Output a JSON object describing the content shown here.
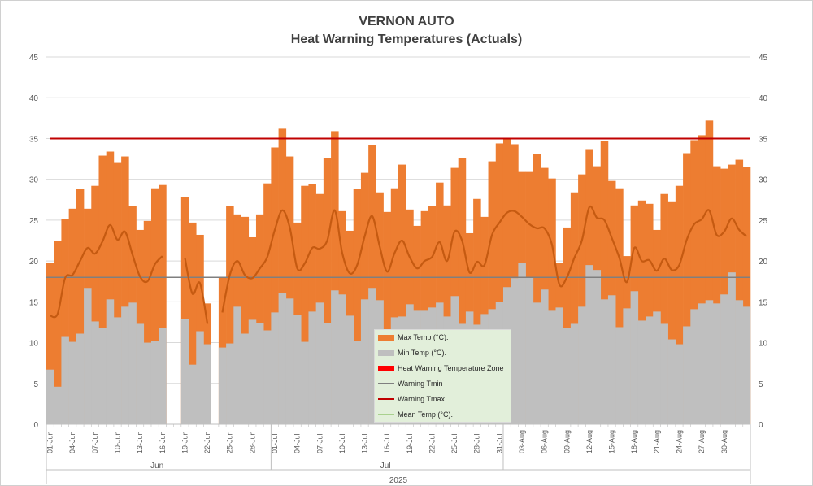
{
  "chart_data": {
    "type": "bar",
    "title": "VERNON AUTO",
    "subtitle": "Heat Warning Temperatures  (Actuals)",
    "ylim": [
      0,
      45
    ],
    "y_ticks": [
      "0",
      "5",
      "10",
      "15",
      "20",
      "25",
      "30",
      "35",
      "40",
      "45"
    ],
    "x_start_date": "2025-06-01",
    "x_tick_labels": [
      "01-Jun",
      "04-Jun",
      "07-Jun",
      "10-Jun",
      "13-Jun",
      "16-Jun",
      "19-Jun",
      "22-Jun",
      "25-Jun",
      "28-Jun",
      "01-Jul",
      "04-Jul",
      "07-Jul",
      "10-Jul",
      "13-Jul",
      "16-Jul",
      "19-Jul",
      "22-Jul",
      "25-Jul",
      "28-Jul",
      "31-Jul",
      "03-Aug",
      "06-Aug",
      "09-Aug",
      "12-Aug",
      "15-Aug",
      "18-Aug",
      "21-Aug",
      "24-Aug",
      "27-Aug",
      "30-Aug"
    ],
    "month_labels": [
      "Jun",
      "Jul",
      ""
    ],
    "year_label": "2025",
    "series": [
      {
        "name": "Max Temp (°C).",
        "color": "#ed7d31",
        "values": [
          19.8,
          22.4,
          25.1,
          26.4,
          28.8,
          26.4,
          29.2,
          32.9,
          33.4,
          32.1,
          32.8,
          26.7,
          23.8,
          24.9,
          28.9,
          29.3,
          null,
          null,
          27.8,
          24.7,
          23.2,
          14.8,
          null,
          18.0,
          26.7,
          25.7,
          25.4,
          22.9,
          25.7,
          29.5,
          33.9,
          36.2,
          32.8,
          24.7,
          29.2,
          29.4,
          28.2,
          32.6,
          35.9,
          26.1,
          23.7,
          28.8,
          30.8,
          34.2,
          28.4,
          26.0,
          28.9,
          31.8,
          26.3,
          24.3,
          26.1,
          26.7,
          29.6,
          26.8,
          31.4,
          32.6,
          23.4,
          27.6,
          25.4,
          32.2,
          34.4,
          35.0,
          34.3,
          30.9,
          30.9,
          33.1,
          31.4,
          30.1,
          19.8,
          24.1,
          28.4,
          30.6,
          33.7,
          31.6,
          34.7,
          29.8,
          28.9,
          20.6,
          26.8,
          27.4,
          27.0,
          23.8,
          28.2,
          27.3,
          29.2,
          33.2,
          34.8,
          35.4,
          37.2,
          31.6,
          31.3,
          31.8,
          32.4,
          31.5
        ]
      },
      {
        "name": "Min Temp (°C).",
        "color": "#bfbfbf",
        "values": [
          6.7,
          4.6,
          10.7,
          10.1,
          11.1,
          16.7,
          12.6,
          11.8,
          15.3,
          13.1,
          14.4,
          14.9,
          12.3,
          10.0,
          10.2,
          11.8,
          null,
          null,
          12.9,
          7.3,
          11.4,
          9.8,
          null,
          9.4,
          9.9,
          14.4,
          11.1,
          12.8,
          12.4,
          11.5,
          13.7,
          16.1,
          15.4,
          13.4,
          10.1,
          13.8,
          14.9,
          12.4,
          16.4,
          15.9,
          13.3,
          10.2,
          15.3,
          16.7,
          15.2,
          11.4,
          13.1,
          13.2,
          14.7,
          13.9,
          13.9,
          14.3,
          14.9,
          13.2,
          15.7,
          12.3,
          13.8,
          12.2,
          13.5,
          14.1,
          15.0,
          16.8,
          17.9,
          19.8,
          18.0,
          14.9,
          16.5,
          13.9,
          14.3,
          11.8,
          12.3,
          14.4,
          19.5,
          18.9,
          15.3,
          15.8,
          11.9,
          14.2,
          16.3,
          12.7,
          13.2,
          13.8,
          12.3,
          10.4,
          9.8,
          12.0,
          14.1,
          14.8,
          15.2,
          14.8,
          15.9,
          18.6,
          15.2,
          14.4
        ]
      },
      {
        "name": "Heat Warning Temperature Zone",
        "color": "#ff0000",
        "values": []
      },
      {
        "name": "Warning Tmin",
        "color": "#7f7f7f",
        "values": [
          18,
          18
        ]
      },
      {
        "name": "Warning Tmax",
        "color": "#c00000",
        "values": [
          35,
          35
        ]
      },
      {
        "name": "Mean Temp (°C).",
        "color": "#a9d18e",
        "values": [
          13.3,
          13.5,
          17.9,
          18.3,
          20.0,
          21.6,
          20.9,
          22.4,
          24.4,
          22.6,
          23.6,
          20.8,
          18.1,
          17.5,
          19.6,
          20.6,
          null,
          null,
          20.4,
          16.0,
          17.3,
          12.3,
          null,
          13.7,
          18.3,
          20.0,
          18.3,
          17.9,
          19.1,
          20.5,
          23.8,
          26.2,
          24.1,
          19.1,
          19.7,
          21.6,
          21.5,
          22.5,
          26.2,
          21.0,
          18.5,
          19.5,
          23.0,
          25.5,
          21.8,
          18.7,
          21.0,
          22.5,
          20.5,
          19.1,
          20.0,
          20.5,
          22.3,
          20.0,
          23.6,
          22.5,
          18.6,
          19.9,
          19.5,
          23.2,
          24.7,
          25.9,
          26.1,
          25.4,
          24.5,
          24.0,
          24.0,
          22.0,
          17.1,
          18.0,
          20.4,
          22.5,
          26.6,
          25.3,
          25.0,
          22.8,
          20.4,
          17.4,
          21.6,
          20.0,
          20.1,
          18.8,
          20.3,
          18.9,
          19.5,
          22.6,
          24.5,
          25.1,
          26.2,
          23.2,
          23.6,
          25.2,
          23.8,
          23.0
        ]
      }
    ]
  }
}
